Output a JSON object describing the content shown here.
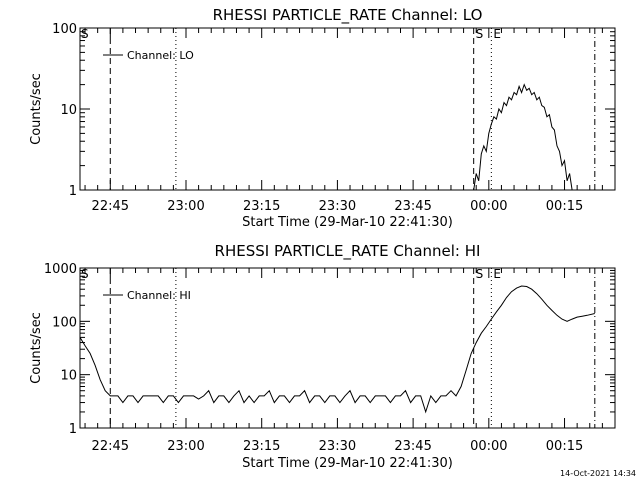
{
  "footer": {
    "timestamp": "14-Oct-2021 14:34"
  },
  "chart_data": [
    {
      "type": "line",
      "title": "RHESSI PARTICLE_RATE Channel: LO",
      "xlabel": "Start Time (29-Mar-10 22:41:30)",
      "ylabel": "Counts/sec",
      "x_unit": "minutes since 22:41:30",
      "xlim": [
        -2.5,
        103.5
      ],
      "ylim": [
        1,
        100
      ],
      "yscale": "log",
      "x_ticks": [
        {
          "x": 3.5,
          "label": "22:45"
        },
        {
          "x": 18.5,
          "label": "23:00"
        },
        {
          "x": 33.5,
          "label": "23:15"
        },
        {
          "x": 48.5,
          "label": "23:30"
        },
        {
          "x": 63.5,
          "label": "23:45"
        },
        {
          "x": 78.5,
          "label": "00:00"
        },
        {
          "x": 93.5,
          "label": "00:15"
        }
      ],
      "y_ticks": [
        {
          "y": 1,
          "label": "1"
        },
        {
          "y": 10,
          "label": "10"
        },
        {
          "y": 100,
          "label": "100"
        }
      ],
      "legend": {
        "position": "top-left",
        "entries": [
          "Channel: LO"
        ]
      },
      "markers": [
        {
          "x": 3.5,
          "style": "dashed",
          "label": "S"
        },
        {
          "x": 16.5,
          "style": "dotted",
          "label": ""
        },
        {
          "x": 75.5,
          "style": "dashed",
          "label": "S"
        },
        {
          "x": 79.0,
          "style": "dotted",
          "label": "E"
        },
        {
          "x": 99.5,
          "style": "dashdot",
          "label": ""
        }
      ],
      "series": [
        {
          "name": "Channel: LO",
          "x": [
            75.5,
            76.0,
            76.5,
            77.0,
            77.5,
            78.0,
            78.5,
            79.0,
            79.5,
            80.0,
            80.5,
            81.0,
            81.5,
            82.0,
            82.5,
            83.0,
            83.5,
            84.0,
            84.5,
            85.0,
            85.5,
            86.0,
            86.5,
            87.0,
            87.5,
            88.0,
            88.5,
            89.0,
            89.5,
            90.0,
            90.5,
            91.0,
            91.5,
            92.0,
            92.5,
            93.0,
            93.5,
            94.0,
            94.5,
            95.0
          ],
          "y": [
            1.0,
            1.6,
            1.3,
            2.8,
            3.5,
            3.0,
            5.0,
            6.5,
            8.0,
            7.5,
            10.0,
            9.0,
            12.0,
            11.0,
            14.0,
            13.0,
            16.0,
            15.0,
            19.0,
            16.0,
            20.0,
            17.0,
            18.0,
            15.0,
            16.0,
            13.0,
            14.0,
            11.0,
            10.5,
            8.0,
            8.5,
            6.0,
            5.5,
            3.5,
            3.0,
            2.0,
            2.3,
            1.3,
            1.6,
            1.0
          ]
        }
      ]
    },
    {
      "type": "line",
      "title": "RHESSI PARTICLE_RATE Channel: HI",
      "xlabel": "Start Time (29-Mar-10 22:41:30)",
      "ylabel": "Counts/sec",
      "x_unit": "minutes since 22:41:30",
      "xlim": [
        -2.5,
        103.5
      ],
      "ylim": [
        1,
        1000
      ],
      "yscale": "log",
      "x_ticks": [
        {
          "x": 3.5,
          "label": "22:45"
        },
        {
          "x": 18.5,
          "label": "23:00"
        },
        {
          "x": 33.5,
          "label": "23:15"
        },
        {
          "x": 48.5,
          "label": "23:30"
        },
        {
          "x": 63.5,
          "label": "23:45"
        },
        {
          "x": 78.5,
          "label": "00:00"
        },
        {
          "x": 93.5,
          "label": "00:15"
        }
      ],
      "y_ticks": [
        {
          "y": 1,
          "label": "1"
        },
        {
          "y": 10,
          "label": "10"
        },
        {
          "y": 100,
          "label": "100"
        },
        {
          "y": 1000,
          "label": "1000"
        }
      ],
      "legend": {
        "position": "top-left",
        "entries": [
          "Channel: HI"
        ]
      },
      "markers": [
        {
          "x": 3.5,
          "style": "dashed",
          "label": "S"
        },
        {
          "x": 16.5,
          "style": "dotted",
          "label": ""
        },
        {
          "x": 75.5,
          "style": "dashed",
          "label": "S"
        },
        {
          "x": 79.0,
          "style": "dotted",
          "label": "E"
        },
        {
          "x": 99.5,
          "style": "dashdot",
          "label": ""
        }
      ],
      "series": [
        {
          "name": "Channel: HI",
          "x": [
            -2.5,
            -1.5,
            -0.5,
            0.5,
            1.5,
            2.5,
            3.5,
            5.0,
            6.0,
            7.0,
            8.0,
            9.0,
            10.0,
            11.0,
            12.0,
            13.0,
            14.0,
            15.0,
            16.0,
            17.0,
            18.0,
            19.0,
            20.0,
            21.0,
            22.0,
            23.0,
            24.0,
            25.0,
            26.0,
            27.0,
            28.0,
            29.0,
            30.0,
            31.0,
            32.0,
            33.0,
            34.0,
            35.0,
            36.0,
            37.0,
            38.0,
            39.0,
            40.0,
            41.0,
            42.0,
            43.0,
            44.0,
            45.0,
            46.0,
            47.0,
            48.0,
            49.0,
            50.0,
            51.0,
            52.0,
            53.0,
            54.0,
            55.0,
            56.0,
            57.0,
            58.0,
            59.0,
            60.0,
            61.0,
            62.0,
            63.0,
            64.0,
            65.0,
            66.0,
            67.0,
            68.0,
            69.0,
            70.0,
            71.0,
            72.0,
            73.0,
            74.0,
            75.0,
            76.0,
            77.0,
            78.0,
            79.0,
            80.0,
            81.0,
            82.0,
            83.0,
            84.0,
            85.0,
            86.0,
            87.0,
            88.0,
            89.0,
            90.0,
            91.0,
            92.0,
            93.0,
            94.0,
            95.0,
            96.0,
            97.0,
            98.0,
            99.5
          ],
          "y": [
            50,
            35,
            25,
            15,
            8,
            5,
            4,
            4,
            3,
            4,
            4,
            3,
            4,
            4,
            4,
            4,
            3,
            4,
            4,
            3,
            4,
            4,
            4,
            3.5,
            4,
            5,
            3,
            4,
            4,
            3,
            4,
            5,
            3,
            4,
            3,
            4,
            4,
            5,
            3,
            4,
            4,
            3,
            4,
            4,
            5,
            3,
            4,
            4,
            3,
            4,
            4,
            3,
            4,
            5,
            3,
            4,
            4,
            3,
            4,
            4,
            4,
            3,
            4,
            4,
            5,
            3,
            4,
            4,
            2,
            4,
            3,
            4,
            4,
            5,
            4,
            6,
            12,
            25,
            40,
            60,
            80,
            110,
            150,
            200,
            280,
            360,
            420,
            460,
            450,
            400,
            330,
            260,
            200,
            160,
            130,
            110,
            100,
            110,
            120,
            125,
            130,
            140
          ]
        }
      ]
    }
  ]
}
